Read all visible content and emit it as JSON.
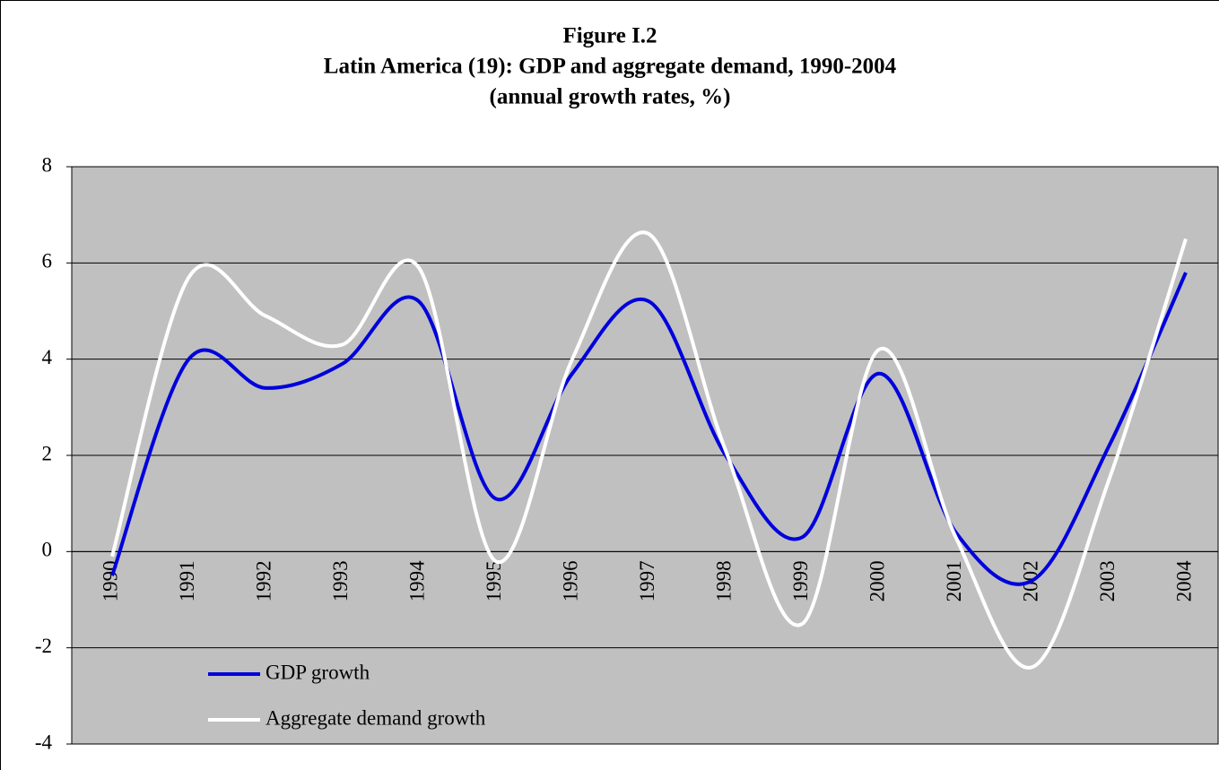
{
  "chart_data": {
    "type": "line",
    "title": [
      "Figure I.2",
      "Latin America (19): GDP and aggregate demand, 1990-2004",
      "(annual growth rates, %)"
    ],
    "categories": [
      "1990",
      "1991",
      "1992",
      "1993",
      "1994",
      "1995",
      "1996",
      "1997",
      "1998",
      "1999",
      "2000",
      "2001",
      "2002",
      "2003",
      "2004"
    ],
    "series": [
      {
        "name": "GDP growth",
        "color": "#0000dd",
        "values": [
          -0.5,
          4.0,
          3.4,
          3.9,
          5.2,
          1.1,
          3.7,
          5.2,
          2.0,
          0.3,
          3.7,
          0.4,
          -0.6,
          2.2,
          5.8
        ]
      },
      {
        "name": "Aggregate demand growth",
        "color": "#ffffff",
        "values": [
          -0.1,
          5.7,
          4.9,
          4.3,
          5.9,
          -0.2,
          4.0,
          6.6,
          2.1,
          -1.5,
          4.2,
          0.3,
          -2.4,
          1.5,
          6.5
        ]
      }
    ],
    "ylim": [
      -4,
      8
    ],
    "yticks": [
      -4,
      -2,
      0,
      2,
      4,
      6,
      8
    ],
    "grid": true,
    "legend": "bottom-left"
  }
}
